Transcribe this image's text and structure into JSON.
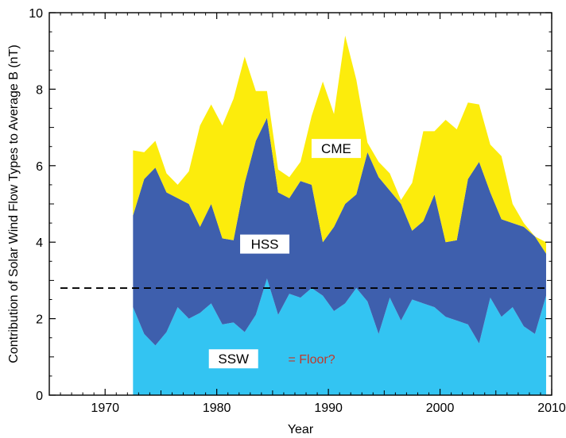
{
  "chart_data": {
    "type": "area",
    "stacked": true,
    "xlabel": "Year",
    "ylabel": "Contribution of Solar Wind Flow Types to Average B (nT)",
    "xlim": [
      1965,
      2010
    ],
    "ylim": [
      0,
      10
    ],
    "xticks": [
      "1970",
      "1980",
      "1990",
      "2000",
      "2010"
    ],
    "yticks": [
      "0",
      "2",
      "4",
      "6",
      "8",
      "10"
    ],
    "x": [
      1972.5,
      1973.5,
      1974.5,
      1975.5,
      1976.5,
      1977.5,
      1978.5,
      1979.5,
      1980.5,
      1981.5,
      1982.5,
      1983.5,
      1984.5,
      1985.5,
      1986.5,
      1987.5,
      1988.5,
      1989.5,
      1990.5,
      1991.5,
      1992.5,
      1993.5,
      1994.5,
      1995.5,
      1996.5,
      1997.5,
      1998.5,
      1999.5,
      2000.5,
      2001.5,
      2002.5,
      2003.5,
      2004.5,
      2005.5,
      2006.5,
      2007.5,
      2008.5,
      2009.5
    ],
    "series": [
      {
        "name": "SSW",
        "color": "#33c4f2",
        "values": [
          2.3,
          1.6,
          1.3,
          1.65,
          2.3,
          2.0,
          2.15,
          2.4,
          1.85,
          1.9,
          1.65,
          2.1,
          3.05,
          2.1,
          2.65,
          2.55,
          2.8,
          2.6,
          2.2,
          2.4,
          2.8,
          2.45,
          1.6,
          2.55,
          1.95,
          2.5,
          2.4,
          2.3,
          2.05,
          1.95,
          1.85,
          1.35,
          2.55,
          2.05,
          2.3,
          1.8,
          1.6,
          2.6
        ]
      },
      {
        "name": "HSS",
        "color": "#3e5fad",
        "values": [
          2.4,
          4.05,
          4.65,
          3.65,
          2.85,
          3.0,
          2.25,
          2.6,
          2.25,
          2.15,
          3.9,
          4.55,
          4.2,
          3.2,
          2.5,
          3.05,
          2.7,
          1.4,
          2.2,
          2.6,
          2.45,
          3.9,
          4.1,
          2.8,
          3.05,
          1.8,
          2.15,
          2.95,
          1.95,
          2.1,
          3.8,
          4.75,
          2.75,
          2.55,
          2.2,
          2.6,
          2.55,
          1.1
        ]
      },
      {
        "name": "CME",
        "color": "#fcec0c",
        "values": [
          1.7,
          0.7,
          0.7,
          0.5,
          0.35,
          0.85,
          2.65,
          2.6,
          2.95,
          3.7,
          3.3,
          1.3,
          0.7,
          0.6,
          0.55,
          0.5,
          1.8,
          4.2,
          2.95,
          4.4,
          3.0,
          0.25,
          0.4,
          0.45,
          0.1,
          1.25,
          2.35,
          1.65,
          3.2,
          2.9,
          2.0,
          1.5,
          1.25,
          1.65,
          0.5,
          0.1,
          0.0,
          0.3
        ]
      }
    ],
    "reference_line": {
      "y": 2.8,
      "style": "dashed"
    },
    "annotations": [
      {
        "text": "CME",
        "x": 1990.7,
        "y": 6.45,
        "boxed": true
      },
      {
        "text": "HSS",
        "x": 1984.3,
        "y": 3.95,
        "boxed": true
      },
      {
        "text": "SSW",
        "x": 1981.5,
        "y": 0.95,
        "boxed": true
      },
      {
        "text": "= Floor?",
        "x": 1988.5,
        "y": 0.95,
        "boxed": false,
        "color": "#c0392b"
      }
    ]
  }
}
